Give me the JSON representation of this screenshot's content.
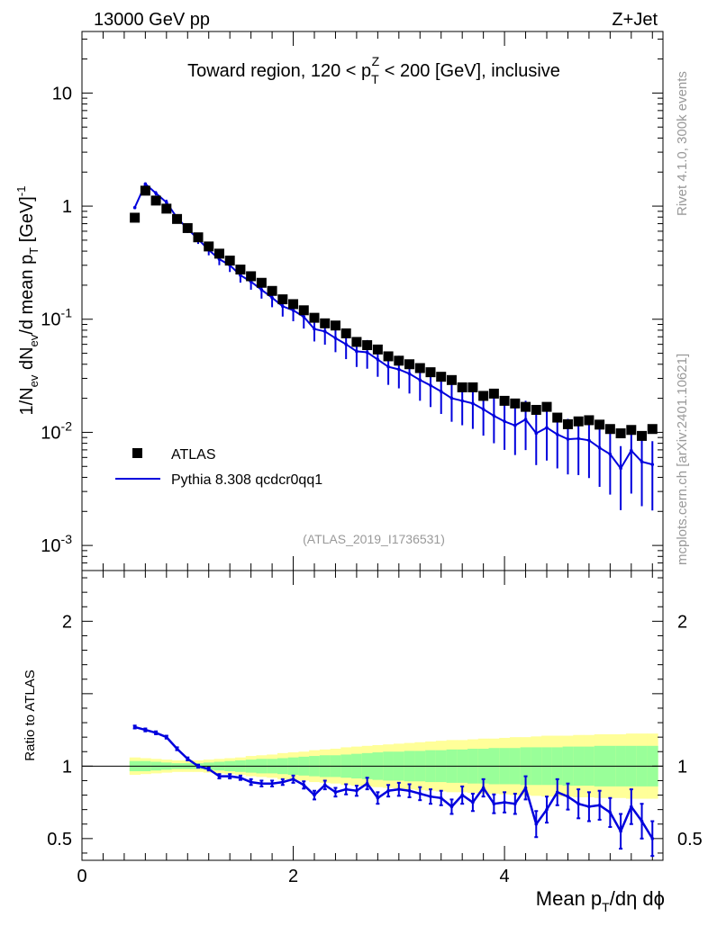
{
  "header": {
    "energy_label": "13000 GeV pp",
    "process_label": "Z+Jet",
    "side_label_rivet": "Rivet 4.1.0,  300k events",
    "side_label_mcplots": "mcplots.cern.ch [arXiv:2401.10621]",
    "analysis_id": "(ATLAS_2019_I1736531)"
  },
  "colors": {
    "mc": "#0000dd",
    "data": "#000000",
    "band_inner": "#99ff99",
    "band_outer": "#ffff99"
  },
  "chart_data": [
    {
      "type": "scatter",
      "title_main": "Toward region, 120 < p",
      "title_sup": "Z",
      "title_sub": "T",
      "title_tail": " < 200 [GeV], inclusive",
      "ylabel_a": "1/N",
      "ylabel_a_sub": "ev",
      "ylabel_b": " dN",
      "ylabel_b_sub": "ev",
      "ylabel_c": "/d mean p",
      "ylabel_c_sub": "T",
      "ylabel_d": " [GeV]",
      "ylabel_d_sup": "-1",
      "yscale": "log",
      "ylim": [
        0.0006,
        35
      ],
      "xlim": [
        0,
        5.5
      ],
      "ytick_labels": [
        {
          "m": "10",
          "e": "-3",
          "v": 0.001
        },
        {
          "m": "10",
          "e": "-2",
          "v": 0.01
        },
        {
          "m": "10",
          "e": "-1",
          "v": 0.1
        },
        {
          "m": "1",
          "e": "",
          "v": 1
        },
        {
          "m": "10",
          "e": "",
          "v": 10
        }
      ],
      "legend": [
        {
          "name": "ATLAS",
          "marker": "square"
        },
        {
          "name": "Pythia 8.308 qcdcr0qq1",
          "marker": "line"
        }
      ],
      "x": [
        0.5,
        0.6,
        0.7,
        0.8,
        0.9,
        1.0,
        1.1,
        1.2,
        1.3,
        1.4,
        1.5,
        1.6,
        1.7,
        1.8,
        1.9,
        2.0,
        2.1,
        2.2,
        2.3,
        2.4,
        2.5,
        2.6,
        2.7,
        2.8,
        2.9,
        3.0,
        3.1,
        3.2,
        3.3,
        3.4,
        3.5,
        3.6,
        3.7,
        3.8,
        3.9,
        4.0,
        4.1,
        4.2,
        4.3,
        4.4,
        4.5,
        4.6,
        4.7,
        4.8,
        4.9,
        5.0,
        5.1,
        5.2,
        5.3,
        5.4
      ],
      "series": [
        {
          "name": "ATLAS",
          "values": [
            0.79,
            1.37,
            1.12,
            0.95,
            0.77,
            0.64,
            0.53,
            0.44,
            0.38,
            0.33,
            0.275,
            0.24,
            0.21,
            0.178,
            0.15,
            0.136,
            0.12,
            0.103,
            0.092,
            0.088,
            0.075,
            0.063,
            0.059,
            0.054,
            0.047,
            0.043,
            0.04,
            0.037,
            0.034,
            0.031,
            0.029,
            0.025,
            0.025,
            0.021,
            0.022,
            0.019,
            0.018,
            0.0168,
            0.0158,
            0.0168,
            0.0135,
            0.0118,
            0.0125,
            0.0128,
            0.0117,
            0.0107,
            0.0098,
            0.0105,
            0.0093,
            0.0107
          ]
        },
        {
          "name": "Pythia 8.308 qcdcr0qq1",
          "values": [
            0.97,
            1.57,
            1.3,
            1.08,
            0.79,
            0.63,
            0.51,
            0.41,
            0.34,
            0.3,
            0.245,
            0.215,
            0.182,
            0.155,
            0.13,
            0.12,
            0.105,
            0.082,
            0.078,
            0.068,
            0.06,
            0.052,
            0.051,
            0.044,
            0.038,
            0.036,
            0.033,
            0.029,
            0.026,
            0.023,
            0.02,
            0.019,
            0.018,
            0.016,
            0.014,
            0.0125,
            0.0115,
            0.013,
            0.0098,
            0.011,
            0.0096,
            0.0087,
            0.0088,
            0.0085,
            0.0073,
            0.0064,
            0.0048,
            0.0069,
            0.0055,
            0.0052
          ]
        }
      ]
    },
    {
      "type": "line",
      "ylabel": "Ratio to ATLAS",
      "xlabel_a": "Mean p",
      "xlabel_sub": "T",
      "xlabel_b": "/dη dϕ",
      "ylim": [
        0.35,
        2.35
      ],
      "xlim": [
        0,
        5.5
      ],
      "ytick_labels": [
        "0.5",
        "1",
        "2"
      ],
      "ytick_values": [
        0.5,
        1,
        2
      ],
      "xtick_labels": [
        "0",
        "2",
        "4"
      ],
      "xtick_values": [
        0,
        2,
        4
      ],
      "x": [
        0.5,
        0.6,
        0.7,
        0.8,
        0.9,
        1.0,
        1.1,
        1.2,
        1.3,
        1.4,
        1.5,
        1.6,
        1.7,
        1.8,
        1.9,
        2.0,
        2.1,
        2.2,
        2.3,
        2.4,
        2.5,
        2.6,
        2.7,
        2.8,
        2.9,
        3.0,
        3.1,
        3.2,
        3.3,
        3.4,
        3.5,
        3.6,
        3.7,
        3.8,
        3.9,
        4.0,
        4.1,
        4.2,
        4.3,
        4.4,
        4.5,
        4.6,
        4.7,
        4.8,
        4.9,
        5.0,
        5.1,
        5.2,
        5.3,
        5.4
      ],
      "ratio": [
        1.27,
        1.25,
        1.23,
        1.2,
        1.12,
        1.05,
        1.0,
        0.98,
        0.93,
        0.93,
        0.92,
        0.89,
        0.88,
        0.88,
        0.89,
        0.91,
        0.87,
        0.8,
        0.87,
        0.82,
        0.84,
        0.83,
        0.88,
        0.78,
        0.83,
        0.84,
        0.83,
        0.81,
        0.79,
        0.78,
        0.72,
        0.8,
        0.75,
        0.85,
        0.74,
        0.75,
        0.74,
        0.85,
        0.6,
        0.7,
        0.82,
        0.79,
        0.74,
        0.72,
        0.73,
        0.68,
        0.55,
        0.72,
        0.62,
        0.5
      ],
      "ratio_err": [
        0.01,
        0.01,
        0.01,
        0.01,
        0.01,
        0.01,
        0.01,
        0.01,
        0.015,
        0.015,
        0.015,
        0.02,
        0.02,
        0.02,
        0.02,
        0.025,
        0.025,
        0.03,
        0.03,
        0.03,
        0.035,
        0.035,
        0.04,
        0.04,
        0.04,
        0.045,
        0.045,
        0.045,
        0.05,
        0.05,
        0.05,
        0.06,
        0.06,
        0.06,
        0.065,
        0.07,
        0.07,
        0.08,
        0.09,
        0.09,
        0.09,
        0.09,
        0.1,
        0.1,
        0.1,
        0.1,
        0.12,
        0.12,
        0.12,
        0.12
      ],
      "band_inner": [
        0.035,
        0.035,
        0.03,
        0.025,
        0.02,
        0.02,
        0.02,
        0.025,
        0.03,
        0.035,
        0.04,
        0.045,
        0.05,
        0.05,
        0.055,
        0.06,
        0.065,
        0.07,
        0.075,
        0.075,
        0.08,
        0.085,
        0.09,
        0.095,
        0.1,
        0.1,
        0.105,
        0.105,
        0.11,
        0.11,
        0.115,
        0.115,
        0.12,
        0.12,
        0.125,
        0.125,
        0.125,
        0.13,
        0.13,
        0.13,
        0.13,
        0.135,
        0.135,
        0.135,
        0.14,
        0.14,
        0.14,
        0.14,
        0.14,
        0.14
      ],
      "band_outer": [
        0.06,
        0.055,
        0.05,
        0.045,
        0.04,
        0.04,
        0.04,
        0.045,
        0.05,
        0.055,
        0.06,
        0.07,
        0.075,
        0.08,
        0.09,
        0.095,
        0.1,
        0.11,
        0.115,
        0.12,
        0.13,
        0.135,
        0.14,
        0.145,
        0.15,
        0.155,
        0.16,
        0.165,
        0.17,
        0.175,
        0.18,
        0.18,
        0.185,
        0.19,
        0.19,
        0.195,
        0.2,
        0.2,
        0.205,
        0.21,
        0.21,
        0.21,
        0.215,
        0.215,
        0.22,
        0.22,
        0.22,
        0.225,
        0.225,
        0.225
      ]
    }
  ]
}
